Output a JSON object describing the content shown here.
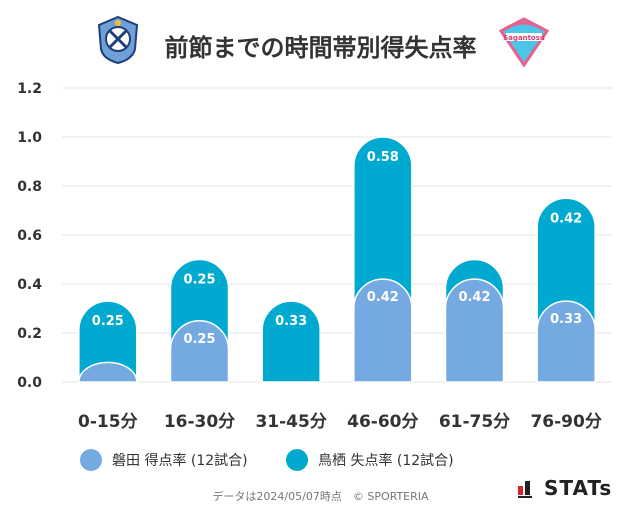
{
  "title": "前節までの時間帯別得失点率",
  "home_logo_icon": "jubilo-iwata-crest-icon",
  "away_logo_icon": "sagan-tosu-crest-icon",
  "away_logo_text": "Sagantosu",
  "colors": {
    "scored": "#74a9e2",
    "conceded": "#00a9cf",
    "grid": "#e4e4e4",
    "axis_text": "#333333"
  },
  "chart_data": {
    "type": "bar",
    "categories": [
      "0-15分",
      "16-30分",
      "31-45分",
      "46-60分",
      "61-75分",
      "76-90分"
    ],
    "series": [
      {
        "name": "磐田 得点率 (12試合)",
        "values": [
          0.08,
          0.25,
          0,
          0.42,
          0.42,
          0.33
        ],
        "labels": [
          "",
          "0.25",
          "",
          "0.42",
          "0.42",
          "0.33"
        ]
      },
      {
        "name": "鳥栖 失点率 (12試合)",
        "values": [
          0.25,
          0.25,
          0.33,
          0.58,
          0.08,
          0.42
        ],
        "labels": [
          "0.25",
          "0.25",
          "0.33",
          "0.58",
          "",
          "0.42"
        ]
      }
    ],
    "stacked": true,
    "ylim": [
      0,
      1.2
    ],
    "yticks": [
      "0.0",
      "0.2",
      "0.4",
      "0.6",
      "0.8",
      "1.0",
      "1.2"
    ],
    "grid": true,
    "legend_position": "bottom"
  },
  "footer": "データは2024/05/07時点　© SPORTERIA",
  "brand": "STATs"
}
